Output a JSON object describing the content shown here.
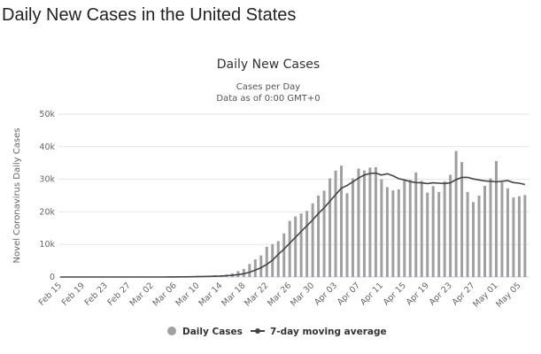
{
  "page_title": "Daily New Cases in the United States",
  "chart_data": {
    "type": "bar",
    "title": "Daily New Cases",
    "subtitle_lines": [
      "Cases per Day",
      "Data as of 0:00 GMT+0"
    ],
    "ylabel": "Novel Coronavirus Daily Cases",
    "xlabel": "",
    "ylim": [
      0,
      50000
    ],
    "yticks": [
      0,
      10000,
      20000,
      30000,
      40000,
      50000
    ],
    "ytick_labels": [
      "0",
      "10k",
      "20k",
      "30k",
      "40k",
      "50k"
    ],
    "xtick_labels": [
      "Feb 15",
      "Feb 19",
      "Feb 23",
      "Feb 27",
      "Mar 02",
      "Mar 06",
      "Mar 10",
      "Mar 14",
      "Mar 18",
      "Mar 22",
      "Mar 26",
      "Mar 30",
      "Apr 03",
      "Apr 07",
      "Apr 11",
      "Apr 15",
      "Apr 19",
      "Apr 23",
      "Apr 27",
      "May 01",
      "May 05"
    ],
    "grid": true,
    "legend_placement": "bottom",
    "colors": {
      "bars": "#a0a0a0",
      "line": "#444444"
    },
    "series": [
      {
        "name": "Daily Cases",
        "type": "bar",
        "values": [
          0,
          0,
          0,
          0,
          0,
          0,
          0,
          0,
          0,
          0,
          0,
          0,
          0,
          0,
          0,
          10,
          20,
          20,
          30,
          70,
          50,
          140,
          120,
          70,
          380,
          320,
          380,
          520,
          550,
          770,
          1130,
          1790,
          2500,
          4000,
          5400,
          6600,
          9300,
          10100,
          11000,
          13400,
          17200,
          18600,
          19500,
          20300,
          22600,
          25000,
          26500,
          30300,
          32700,
          34200,
          25700,
          30300,
          33300,
          32700,
          33600,
          33700,
          30000,
          27600,
          26600,
          26900,
          30000,
          29800,
          32100,
          29500,
          25900,
          27900,
          26100,
          29400,
          31400,
          38700,
          35300,
          26100,
          23000,
          25000,
          28000,
          30300,
          35600,
          29100,
          27200,
          24400,
          24800,
          25200
        ]
      },
      {
        "name": "7-day moving average",
        "type": "line",
        "values": [
          0,
          0,
          0,
          0,
          0,
          0,
          0,
          0,
          0,
          0,
          0,
          0,
          0,
          0,
          0,
          1,
          4,
          7,
          11,
          21,
          29,
          49,
          64,
          71,
          121,
          157,
          190,
          245,
          304,
          416,
          526,
          732,
          1015,
          1466,
          2120,
          2846,
          3889,
          5173,
          6957,
          8543,
          10371,
          12171,
          14000,
          15729,
          17514,
          19514,
          21243,
          23271,
          25271,
          27257,
          28100,
          29214,
          30386,
          31314,
          31786,
          31914,
          31300,
          31700,
          31100,
          30200,
          29800,
          29300,
          29000,
          28900,
          28700,
          28900,
          28800,
          28700,
          28900,
          29900,
          30600,
          30600,
          30100,
          29800,
          29500,
          29400,
          29200,
          29400,
          29600,
          29000,
          28800,
          28400
        ]
      }
    ]
  }
}
